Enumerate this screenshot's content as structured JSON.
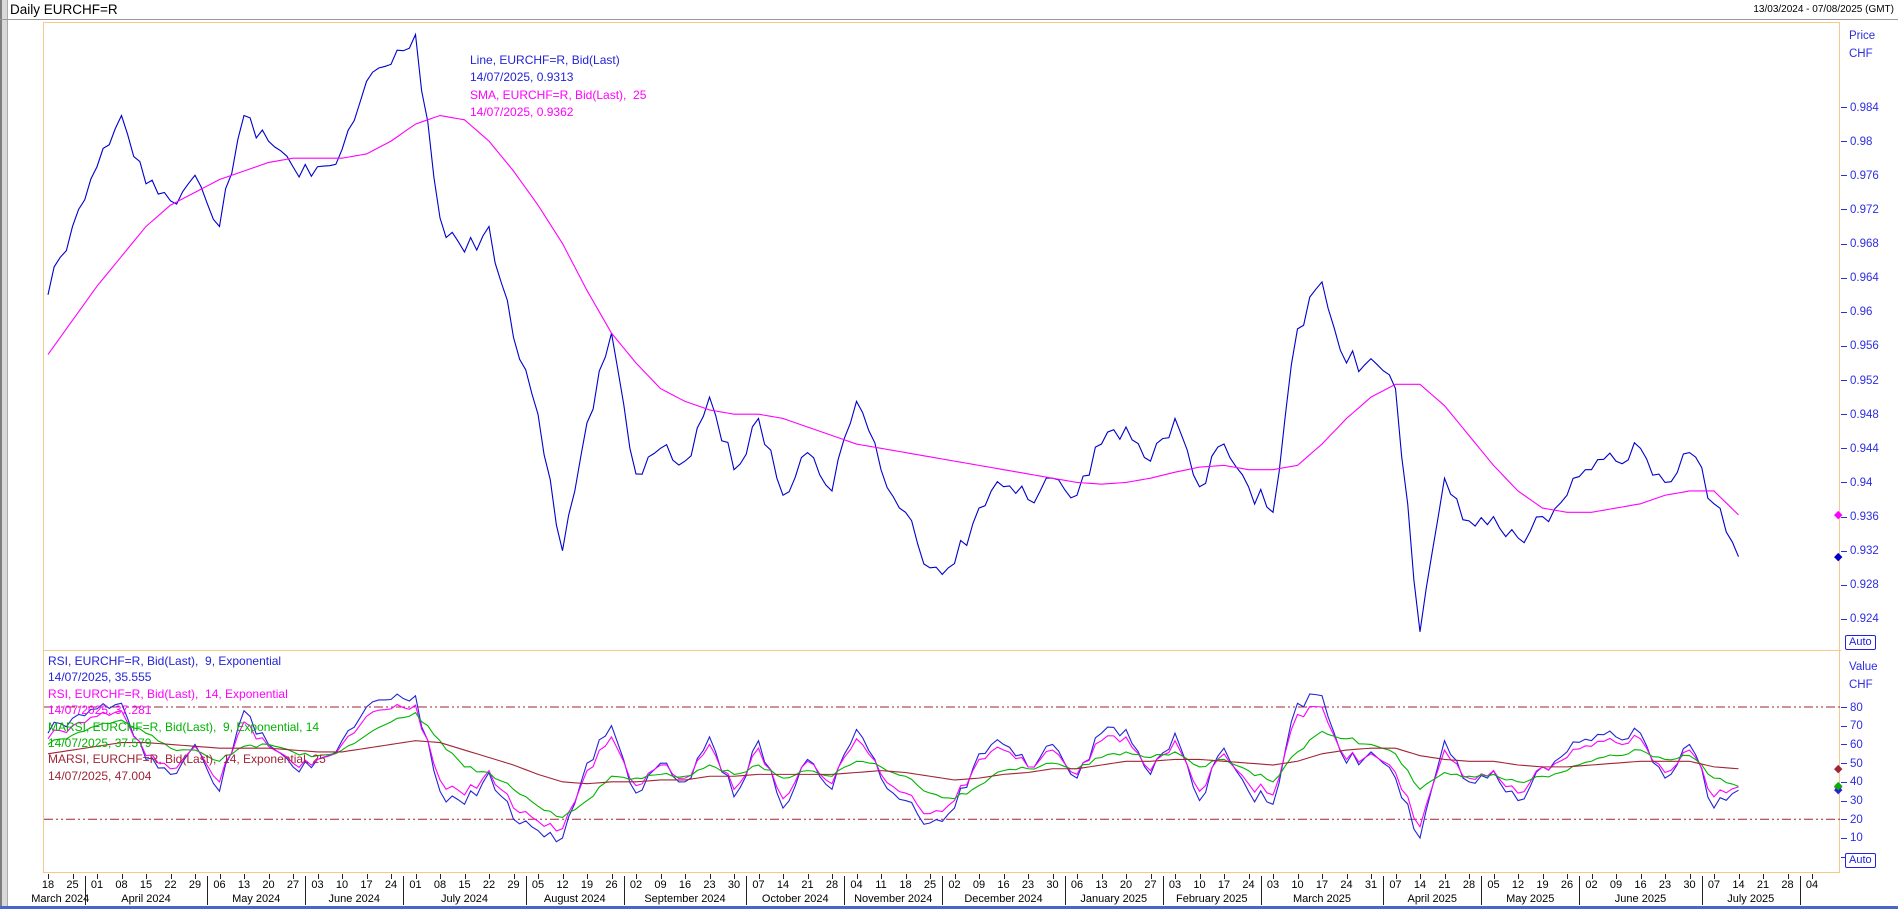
{
  "window": {
    "title": "Daily EURCHF=R",
    "range_label": "13/03/2024 - 07/08/2025 (GMT)"
  },
  "colors": {
    "frame": "#f4c98e",
    "price_line": "#0000cd",
    "sma_line": "#ff00ff",
    "rsi9": "#2323d7",
    "rsi14": "#ff00ff",
    "marsi9": "#00b400",
    "marsi25": "#a02535",
    "axis_text": "#2d2de0",
    "threshold": "#a02535"
  },
  "main_panel": {
    "legend": [
      {
        "text": "Line, EURCHF=R, Bid(Last)",
        "color": "c-blue"
      },
      {
        "text": "14/07/2025, 0.9313",
        "color": "c-blue"
      },
      {
        "text": "SMA, EURCHF=R, Bid(Last),  25",
        "color": "c-magenta"
      },
      {
        "text": "14/07/2025, 0.9362",
        "color": "c-magenta"
      }
    ],
    "axis": {
      "title_line1": "Price",
      "title_line2": "CHF",
      "ticks": [
        "0.984",
        "0.98",
        "0.976",
        "0.972",
        "0.968",
        "0.964",
        "0.96",
        "0.956",
        "0.952",
        "0.948",
        "0.944",
        "0.94",
        "0.936",
        "0.932",
        "0.928",
        "0.924"
      ],
      "tick_values": [
        0.984,
        0.98,
        0.976,
        0.972,
        0.968,
        0.964,
        0.96,
        0.956,
        0.952,
        0.948,
        0.944,
        0.94,
        0.936,
        0.932,
        0.928,
        0.924
      ],
      "markers": [
        {
          "value": 0.9362,
          "color": "#ff00ff"
        },
        {
          "value": 0.9313,
          "color": "#0000cd"
        }
      ],
      "auto_label": "Auto"
    }
  },
  "rsi_panel": {
    "legend": [
      {
        "text": "RSI, EURCHF=R, Bid(Last),  9, Exponential",
        "color": "c-blue"
      },
      {
        "text": "14/07/2025, 35.555",
        "color": "c-blue"
      },
      {
        "text": "RSI, EURCHF=R, Bid(Last),  14, Exponential",
        "color": "c-magenta"
      },
      {
        "text": "14/07/2025, 37.281",
        "color": "c-magenta"
      },
      {
        "text": "MARSI, EURCHF=R, Bid(Last),  9, Exponential, 14",
        "color": "c-green"
      },
      {
        "text": "14/07/2025, 37.579",
        "color": "c-green"
      },
      {
        "text": "MARSI, EURCHF=R, Bid(Last),  14, Exponential, 25",
        "color": "c-dred"
      },
      {
        "text": "14/07/2025, 47.004",
        "color": "c-dred"
      }
    ],
    "axis": {
      "title_line1": "Value",
      "title_line2": "CHF",
      "ticks": [
        {
          "v": 80,
          "label": "80"
        },
        {
          "v": 70,
          "label": "70"
        },
        {
          "v": 60,
          "label": "60"
        },
        {
          "v": 50,
          "label": "50"
        },
        {
          "v": 40,
          "label": "40"
        },
        {
          "v": 30,
          "label": "30"
        },
        {
          "v": 20,
          "label": "20"
        },
        {
          "v": 10,
          "label": "10"
        },
        {
          "v": 0,
          "label": ""
        }
      ],
      "markers": [
        {
          "value": 47.0,
          "color": "#a02535"
        },
        {
          "value": 37.3,
          "color": "#ff00ff"
        },
        {
          "value": 35.6,
          "color": "#2323d7"
        },
        {
          "value": 37.6,
          "color": "#00b400"
        }
      ],
      "auto_label": "Auto"
    },
    "thresholds": [
      80,
      20
    ]
  },
  "x_axis": {
    "months": [
      {
        "label": "March 2024",
        "days": [
          "18",
          "25"
        ]
      },
      {
        "label": "April 2024",
        "days": [
          "01",
          "08",
          "15",
          "22",
          "29"
        ]
      },
      {
        "label": "May 2024",
        "days": [
          "06",
          "13",
          "20",
          "27"
        ]
      },
      {
        "label": "June 2024",
        "days": [
          "03",
          "10",
          "17",
          "24"
        ]
      },
      {
        "label": "July 2024",
        "days": [
          "01",
          "08",
          "15",
          "22",
          "29"
        ]
      },
      {
        "label": "August 2024",
        "days": [
          "05",
          "12",
          "19",
          "26"
        ]
      },
      {
        "label": "September 2024",
        "days": [
          "02",
          "09",
          "16",
          "23",
          "30"
        ]
      },
      {
        "label": "October 2024",
        "days": [
          "07",
          "14",
          "21",
          "28"
        ]
      },
      {
        "label": "November 2024",
        "days": [
          "04",
          "11",
          "18",
          "25"
        ]
      },
      {
        "label": "December 2024",
        "days": [
          "02",
          "09",
          "16",
          "23",
          "30"
        ]
      },
      {
        "label": "January 2025",
        "days": [
          "06",
          "13",
          "20",
          "27"
        ]
      },
      {
        "label": "February 2025",
        "days": [
          "03",
          "10",
          "17",
          "24"
        ]
      },
      {
        "label": "March 2025",
        "days": [
          "03",
          "10",
          "17",
          "24",
          "31"
        ]
      },
      {
        "label": "April 2025",
        "days": [
          "07",
          "14",
          "21",
          "28"
        ]
      },
      {
        "label": "May 2025",
        "days": [
          "05",
          "12",
          "19",
          "26"
        ]
      },
      {
        "label": "June 2025",
        "days": [
          "02",
          "09",
          "16",
          "23",
          "30"
        ]
      },
      {
        "label": "July 2025",
        "days": [
          "07",
          "14",
          "21",
          "28"
        ]
      },
      {
        "label": "",
        "days": [
          "04"
        ]
      }
    ]
  },
  "chart_data": [
    {
      "type": "line",
      "panel": "price",
      "title": "Daily EURCHF=R, Bid(Last)",
      "x_interval": "weekly",
      "x_start": "18/03/2024",
      "x_end": "14/07/2025",
      "ylabel": "Price CHF",
      "ylim": [
        0.9205,
        0.994
      ],
      "grid": false,
      "series": [
        {
          "name": "Line, EURCHF=R, Bid(Last)",
          "color": "#0000cd",
          "last_date": "14/07/2025",
          "last_value": 0.9313,
          "jitter": 0.0013,
          "values": [
            0.962,
            0.97,
            0.977,
            0.983,
            0.975,
            0.973,
            0.976,
            0.97,
            0.983,
            0.98,
            0.977,
            0.977,
            0.979,
            0.987,
            0.989,
            0.9925,
            0.971,
            0.967,
            0.97,
            0.957,
            0.948,
            0.932,
            0.947,
            0.9575,
            0.941,
            0.944,
            0.9425,
            0.95,
            0.9415,
            0.9475,
            0.9385,
            0.9435,
            0.939,
            0.9495,
            0.9415,
            0.9365,
            0.93,
            0.9305,
            0.937,
            0.9395,
            0.938,
            0.9405,
            0.9385,
            0.9445,
            0.9465,
            0.9425,
            0.9475,
            0.9395,
            0.9445,
            0.9395,
            0.9365,
            0.958,
            0.9635,
            0.954,
            0.9545,
            0.951,
            0.9225,
            0.9405,
            0.9355,
            0.936,
            0.9335,
            0.936,
            0.9385,
            0.9415,
            0.9425,
            0.944,
            0.94,
            0.9435,
            0.9375,
            0.9313
          ]
        },
        {
          "name": "SMA, EURCHF=R, Bid(Last), 25",
          "color": "#ff00ff",
          "last_date": "14/07/2025",
          "last_value": 0.9362,
          "jitter": 0,
          "values": [
            0.955,
            0.959,
            0.963,
            0.9665,
            0.97,
            0.9725,
            0.974,
            0.9755,
            0.9765,
            0.9775,
            0.978,
            0.978,
            0.978,
            0.9785,
            0.98,
            0.982,
            0.983,
            0.9825,
            0.98,
            0.9765,
            0.9725,
            0.968,
            0.9625,
            0.9575,
            0.954,
            0.951,
            0.9495,
            0.9485,
            0.948,
            0.948,
            0.9475,
            0.9465,
            0.9455,
            0.9445,
            0.944,
            0.9435,
            0.943,
            0.9425,
            0.942,
            0.9415,
            0.941,
            0.9405,
            0.94,
            0.9398,
            0.94,
            0.9405,
            0.9412,
            0.9418,
            0.942,
            0.9415,
            0.9415,
            0.942,
            0.9445,
            0.9475,
            0.95,
            0.9515,
            0.9515,
            0.949,
            0.9455,
            0.942,
            0.939,
            0.937,
            0.9365,
            0.9365,
            0.937,
            0.9375,
            0.9385,
            0.939,
            0.939,
            0.9362
          ]
        }
      ]
    },
    {
      "type": "line",
      "panel": "oscillator",
      "title": "RSI / MARSI, EURCHF=R",
      "x_interval": "weekly",
      "x_start": "18/03/2024",
      "x_end": "14/07/2025",
      "ylabel": "Value CHF",
      "ylim": [
        0,
        100
      ],
      "overbought": 80,
      "oversold": 20,
      "series": [
        {
          "name": "RSI 9 Exponential",
          "color": "#2323d7",
          "last_date": "14/07/2025",
          "last_value": 35.555,
          "jitter": 4,
          "values": [
            66,
            74,
            79,
            82,
            52,
            44,
            60,
            35,
            78,
            60,
            48,
            52,
            62,
            80,
            84,
            86,
            35,
            28,
            45,
            20,
            14,
            10,
            50,
            70,
            34,
            50,
            40,
            64,
            32,
            62,
            26,
            52,
            36,
            68,
            42,
            30,
            18,
            26,
            55,
            60,
            48,
            60,
            42,
            66,
            68,
            44,
            66,
            30,
            58,
            35,
            28,
            82,
            86,
            50,
            56,
            42,
            10,
            62,
            40,
            46,
            30,
            48,
            56,
            62,
            64,
            66,
            42,
            60,
            26,
            35.555
          ]
        },
        {
          "name": "RSI 14 Exponential",
          "color": "#ff00ff",
          "last_date": "14/07/2025",
          "last_value": 37.281,
          "jitter": 3,
          "values": [
            63,
            70,
            75,
            78,
            54,
            47,
            59,
            40,
            72,
            59,
            50,
            52,
            60,
            75,
            79,
            81,
            41,
            33,
            46,
            26,
            19,
            15,
            46,
            64,
            38,
            49,
            42,
            60,
            36,
            58,
            31,
            51,
            39,
            63,
            44,
            34,
            23,
            30,
            52,
            57,
            48,
            57,
            44,
            62,
            64,
            46,
            62,
            35,
            55,
            39,
            33,
            76,
            80,
            52,
            55,
            45,
            16,
            57,
            42,
            46,
            34,
            48,
            53,
            59,
            61,
            63,
            45,
            57,
            32,
            37.281
          ]
        },
        {
          "name": "MARSI 9 Exponential 14",
          "color": "#00b400",
          "last_date": "14/07/2025",
          "last_value": 37.579,
          "jitter": 1.2,
          "values": [
            60,
            65,
            70,
            73,
            66,
            58,
            57,
            51,
            59,
            60,
            56,
            54,
            57,
            65,
            72,
            77,
            62,
            48,
            45,
            36,
            27,
            21,
            30,
            43,
            42,
            44,
            43,
            49,
            44,
            49,
            42,
            46,
            43,
            51,
            48,
            43,
            34,
            31,
            38,
            46,
            47,
            50,
            47,
            53,
            56,
            53,
            56,
            48,
            52,
            46,
            40,
            56,
            67,
            63,
            60,
            55,
            36,
            45,
            43,
            44,
            40,
            43,
            46,
            51,
            54,
            57,
            52,
            54,
            42,
            37.579
          ]
        },
        {
          "name": "MARSI 14 Exponential 25",
          "color": "#a02535",
          "last_date": "14/07/2025",
          "last_value": 47.004,
          "jitter": 0,
          "values": [
            55,
            57,
            59,
            61,
            61,
            60,
            59,
            58,
            58,
            58,
            57,
            56,
            56,
            58,
            60,
            62,
            61,
            57,
            53,
            49,
            44,
            40,
            39,
            40,
            40,
            41,
            41,
            43,
            43,
            44,
            44,
            44,
            44,
            45,
            46,
            45,
            43,
            41,
            42,
            44,
            45,
            47,
            47,
            49,
            51,
            51,
            52,
            52,
            51,
            50,
            49,
            51,
            55,
            57,
            58,
            58,
            54,
            52,
            51,
            51,
            49,
            48,
            48,
            49,
            50,
            51,
            51,
            51,
            48,
            47.004
          ]
        }
      ]
    }
  ]
}
